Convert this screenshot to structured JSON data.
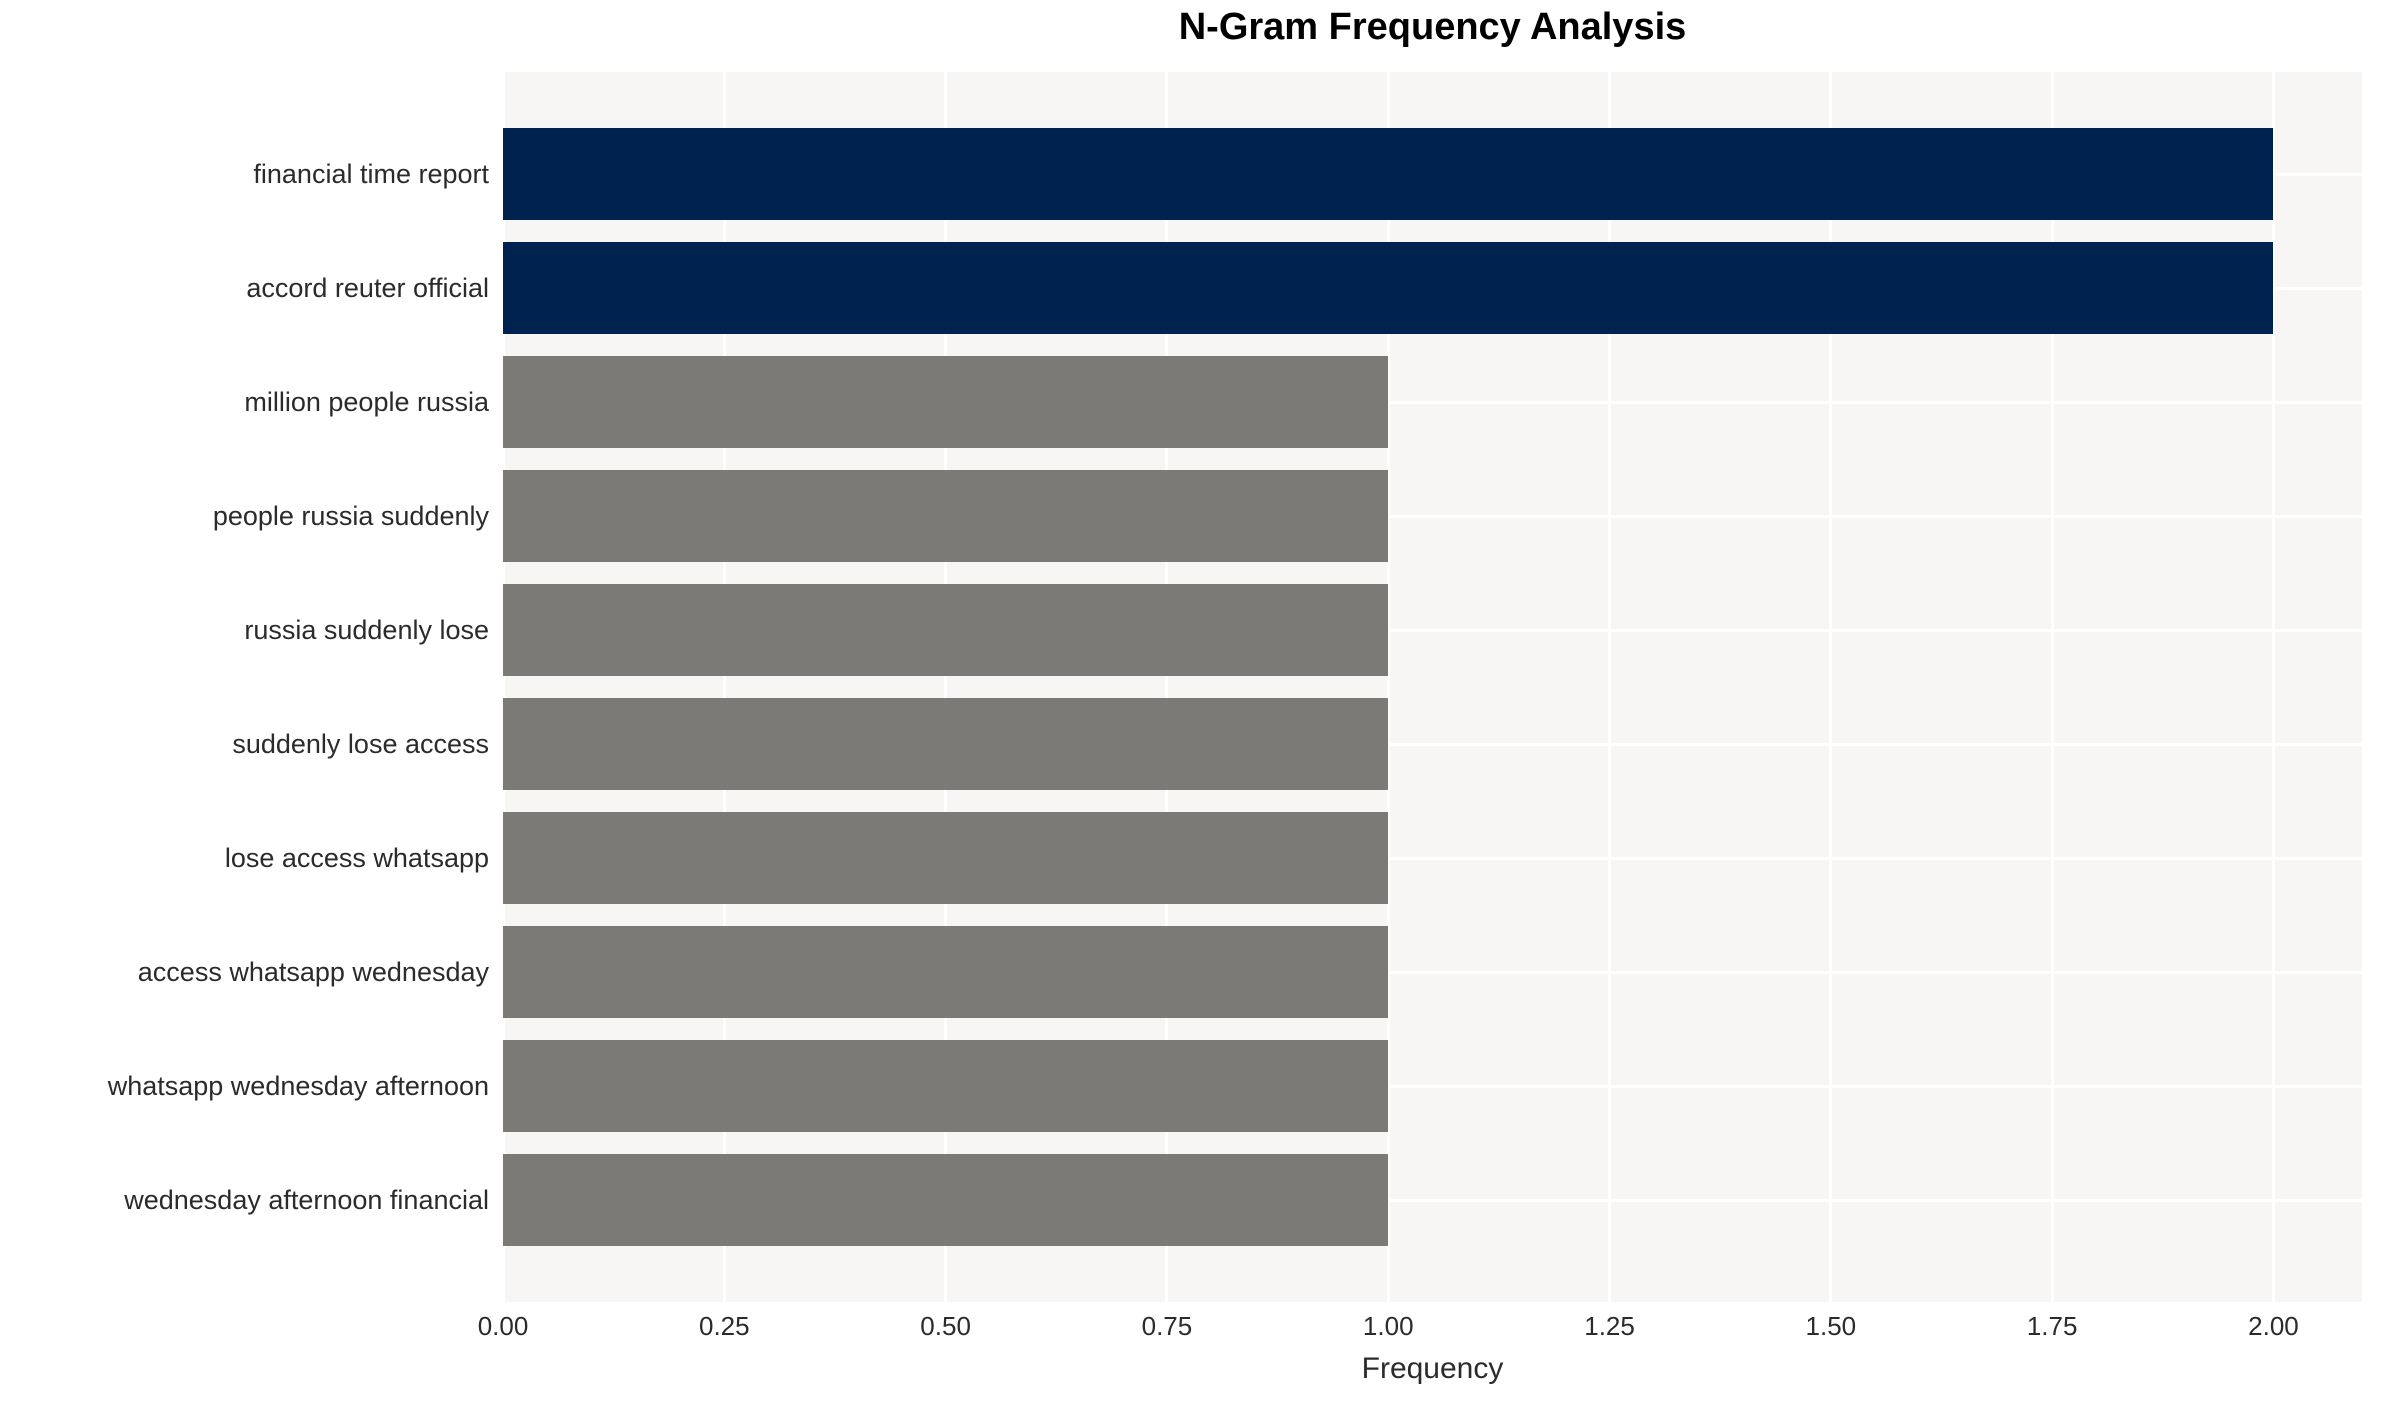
{
  "chart_data": {
    "type": "bar",
    "orientation": "horizontal",
    "title": "N-Gram Frequency Analysis",
    "xlabel": "Frequency",
    "ylabel": "",
    "categories": [
      "financial time report",
      "accord reuter official",
      "million people russia",
      "people russia suddenly",
      "russia suddenly lose",
      "suddenly lose access",
      "lose access whatsapp",
      "access whatsapp wednesday",
      "whatsapp wednesday afternoon",
      "wednesday afternoon financial"
    ],
    "values": [
      2,
      2,
      1,
      1,
      1,
      1,
      1,
      1,
      1,
      1
    ],
    "bar_colors": [
      "#00224E",
      "#00224E",
      "#7B7A77",
      "#7B7A77",
      "#7B7A77",
      "#7B7A77",
      "#7B7A77",
      "#7B7A77",
      "#7B7A77",
      "#7B7A77"
    ],
    "xlim": [
      0,
      2.1
    ],
    "x_ticks": [
      {
        "value": 0.0,
        "label": "0.00"
      },
      {
        "value": 0.25,
        "label": "0.25"
      },
      {
        "value": 0.5,
        "label": "0.50"
      },
      {
        "value": 0.75,
        "label": "0.75"
      },
      {
        "value": 1.0,
        "label": "1.00"
      },
      {
        "value": 1.25,
        "label": "1.25"
      },
      {
        "value": 1.5,
        "label": "1.50"
      },
      {
        "value": 1.75,
        "label": "1.75"
      },
      {
        "value": 2.0,
        "label": "2.00"
      }
    ],
    "grid": {
      "vertical": true,
      "horizontal": true,
      "grid_color": "#FFFFFF",
      "grid_on": true
    },
    "legend": {
      "visible": false
    },
    "colors": {
      "high_frequency_bar": "#00224E",
      "low_frequency_bar": "#7B7A77",
      "plot_background": "#F7F6F4",
      "figure_background": "#FFFFFF",
      "tick_text": "#2B2B2B",
      "title_text": "#000000"
    }
  }
}
